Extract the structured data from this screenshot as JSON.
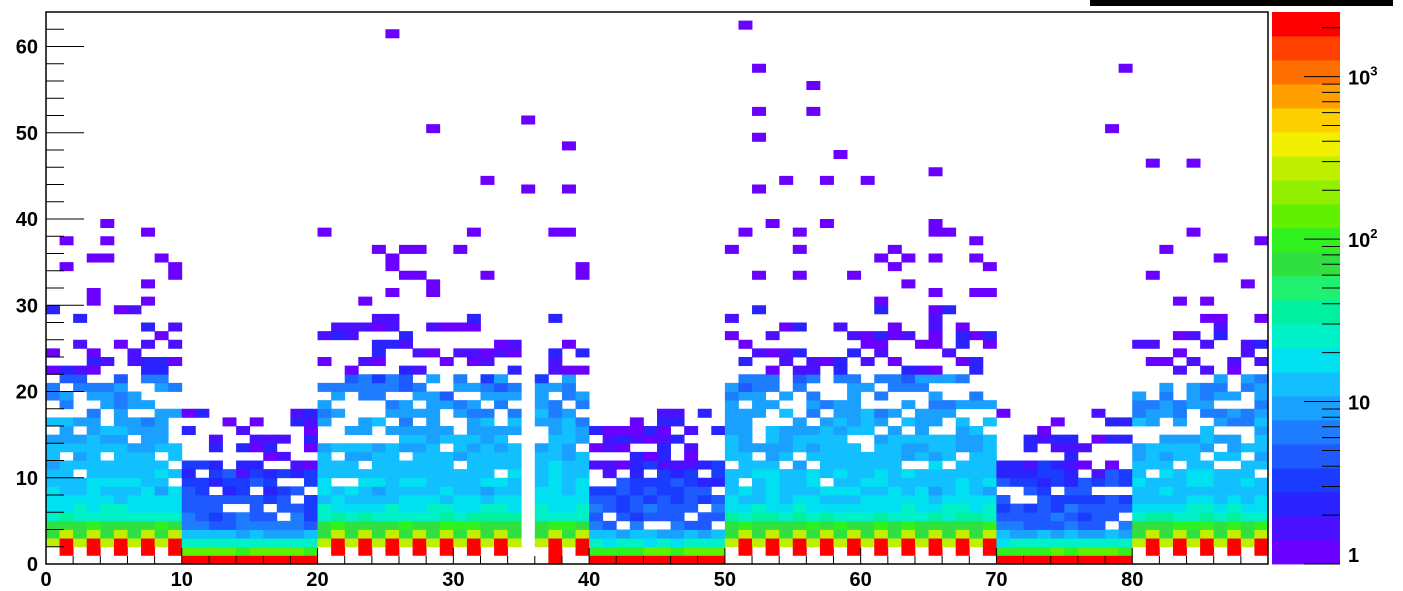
{
  "chart_data": {
    "type": "heatmap",
    "x_ticks": [
      "0",
      "10",
      "20",
      "30",
      "40",
      "50",
      "60",
      "70",
      "80"
    ],
    "y_ticks": [
      "0",
      "10",
      "20",
      "30",
      "40",
      "50",
      "60"
    ],
    "xlim": [
      0,
      90
    ],
    "ylim": [
      0,
      64
    ],
    "bins": {
      "x": 90,
      "y": 64
    },
    "z_scale": "log",
    "z_range": [
      1,
      2500
    ],
    "colorbar_ticks": [
      {
        "base": "1",
        "exp": ""
      },
      {
        "base": "10",
        "exp": ""
      },
      {
        "base": "10",
        "exp": "2"
      },
      {
        "base": "10",
        "exp": "3"
      }
    ],
    "colorbar_tick_values": [
      1,
      10,
      100,
      1000
    ],
    "palette": [
      "#6a00ff",
      "#4a10ff",
      "#2a22ff",
      "#1a3cff",
      "#1e5aff",
      "#1e7cff",
      "#1aa0ff",
      "#12c0ff",
      "#00e0f0",
      "#00f0c8",
      "#00f0a0",
      "#20f070",
      "#30e040",
      "#30f020",
      "#60f000",
      "#90f000",
      "#c0f000",
      "#f0f000",
      "#ffd000",
      "#ffa000",
      "#ff7000",
      "#ff4000",
      "#ff0000"
    ],
    "grid": false,
    "notes_on_pattern": {
      "block_columns_x": [
        [
          10,
          20
        ],
        [
          40,
          50
        ],
        [
          70,
          80
        ]
      ],
      "gap_column_x": 35,
      "isolated_points": [
        [
          25,
          61
        ],
        [
          51,
          62
        ],
        [
          37,
          0
        ],
        [
          52,
          57
        ],
        [
          79,
          57
        ],
        [
          56,
          55
        ],
        [
          35,
          51
        ],
        [
          28,
          50
        ],
        [
          78,
          50
        ],
        [
          52,
          52
        ],
        [
          56,
          52
        ],
        [
          52,
          49
        ],
        [
          38,
          48
        ],
        [
          58,
          47
        ],
        [
          65,
          45
        ],
        [
          81,
          46
        ],
        [
          84,
          46
        ],
        [
          32,
          44
        ],
        [
          35,
          43
        ],
        [
          38,
          43
        ],
        [
          52,
          43
        ],
        [
          54,
          44
        ],
        [
          57,
          44
        ],
        [
          60,
          44
        ]
      ]
    }
  }
}
